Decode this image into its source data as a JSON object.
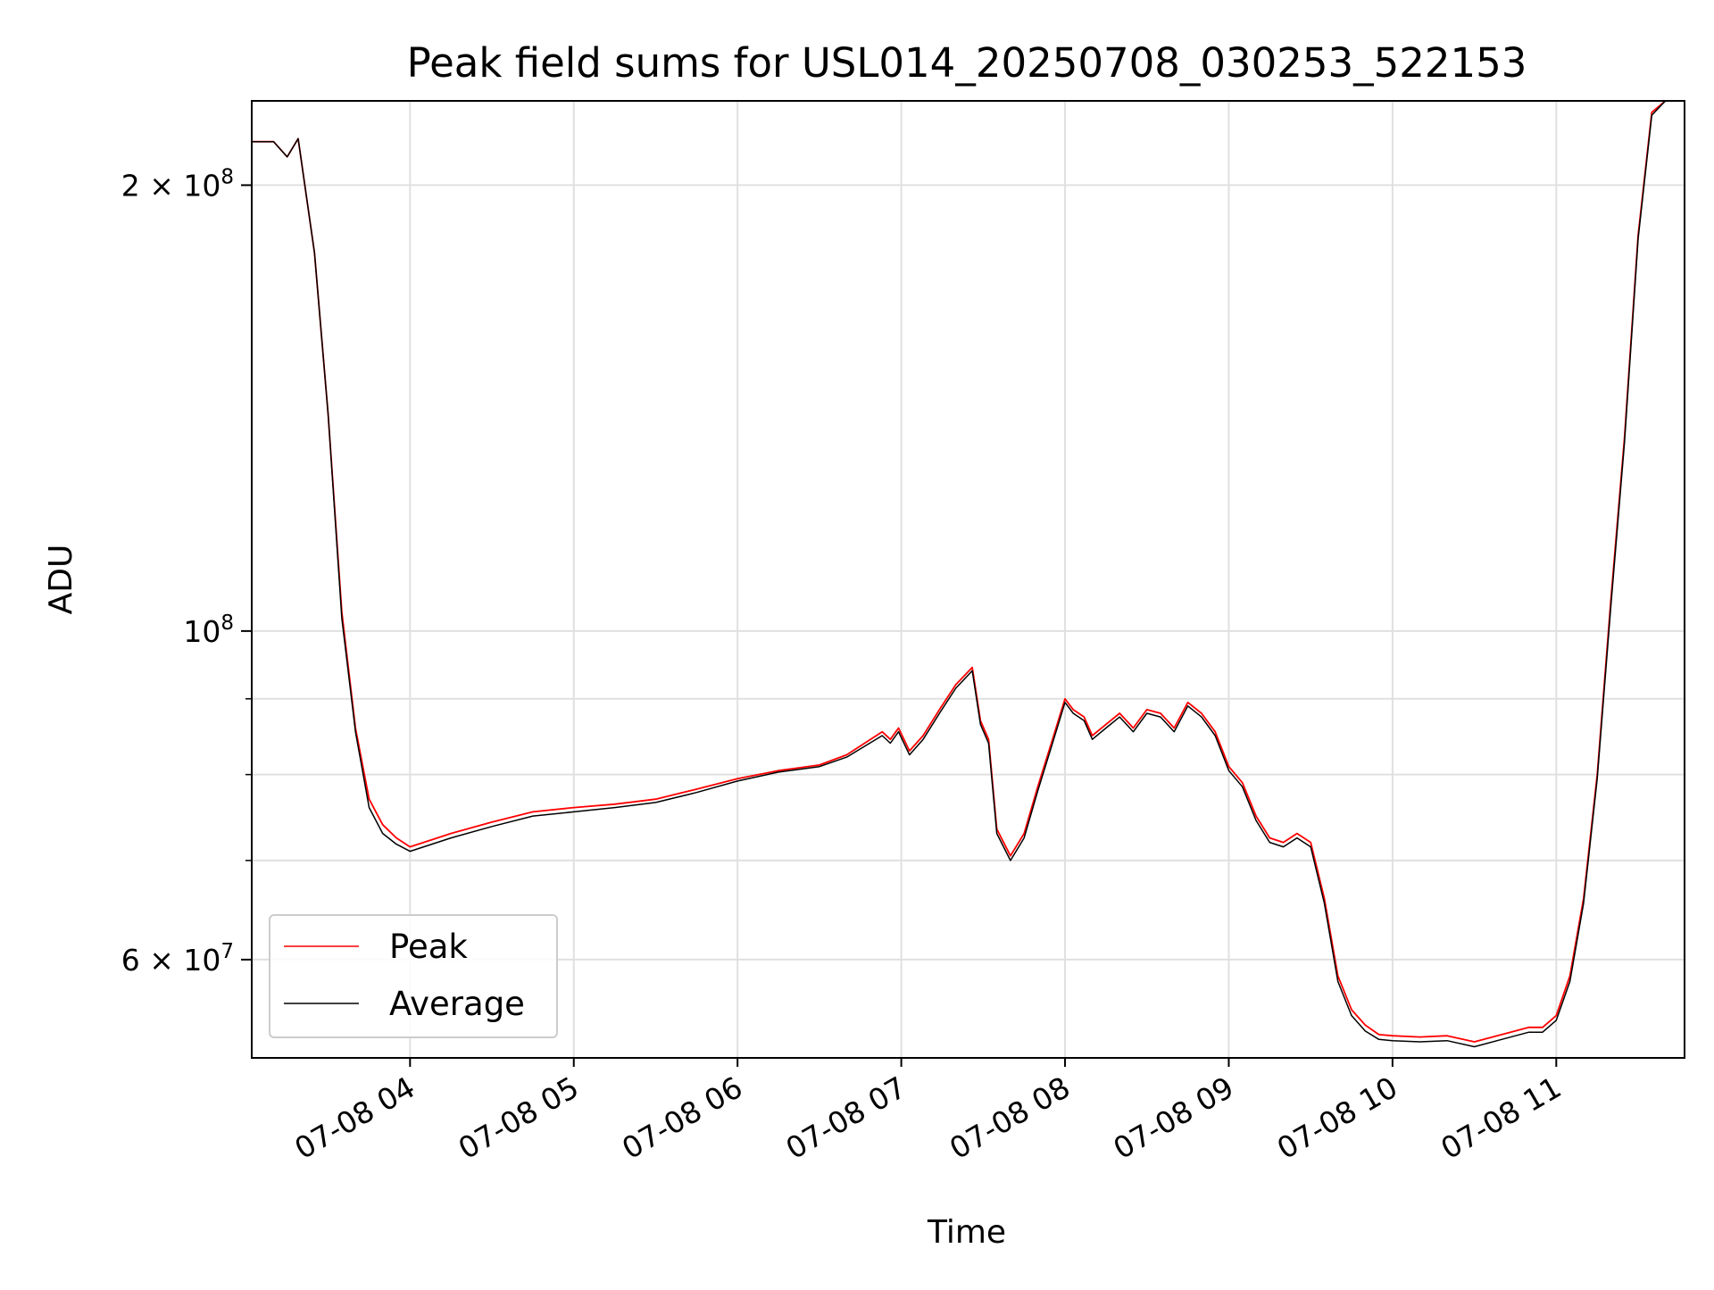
{
  "chart_data": {
    "type": "line",
    "title": "Peak field sums for USL014_20250708_030253_522153",
    "xlabel": "Time",
    "ylabel": "ADU",
    "y_scale": "log",
    "ylim": [
      51500000,
      228000000
    ],
    "xlim": [
      "07-08 03:02",
      "07-08 11:47"
    ],
    "grid": true,
    "legend_position": "lower-left",
    "x_ticks": [
      {
        "value": "07-08 04:00",
        "label": "07-08 04"
      },
      {
        "value": "07-08 05:00",
        "label": "07-08 05"
      },
      {
        "value": "07-08 06:00",
        "label": "07-08 06"
      },
      {
        "value": "07-08 07:00",
        "label": "07-08 07"
      },
      {
        "value": "07-08 08:00",
        "label": "07-08 08"
      },
      {
        "value": "07-08 09:00",
        "label": "07-08 09"
      },
      {
        "value": "07-08 10:00",
        "label": "07-08 10"
      },
      {
        "value": "07-08 11:00",
        "label": "07-08 11"
      }
    ],
    "y_ticks": [
      {
        "value": 200000000,
        "base": "2 × 10",
        "exp": "8"
      },
      {
        "value": 100000000,
        "base": "10",
        "exp": "8"
      },
      {
        "value": 60000000,
        "base": "6 × 10",
        "exp": "7"
      }
    ],
    "y_minor_ticks": [
      70000000,
      80000000,
      90000000
    ],
    "colors": {
      "peak": "#ff0000",
      "average": "#000000",
      "grid": "#e0e0e0"
    },
    "series": [
      {
        "name": "Peak",
        "color": "#ff0000",
        "x": [
          "07-08 03:02",
          "07-08 03:10",
          "07-08 03:15",
          "07-08 03:19",
          "07-08 03:25",
          "07-08 03:30",
          "07-08 03:35",
          "07-08 03:40",
          "07-08 03:45",
          "07-08 03:50",
          "07-08 03:55",
          "07-08 04:00",
          "07-08 04:05",
          "07-08 04:15",
          "07-08 04:30",
          "07-08 04:45",
          "07-08 05:00",
          "07-08 05:15",
          "07-08 05:30",
          "07-08 05:45",
          "07-08 06:00",
          "07-08 06:15",
          "07-08 06:30",
          "07-08 06:40",
          "07-08 06:53",
          "07-08 06:56",
          "07-08 06:59",
          "07-08 07:03",
          "07-08 07:08",
          "07-08 07:14",
          "07-08 07:20",
          "07-08 07:26",
          "07-08 07:29",
          "07-08 07:32",
          "07-08 07:35",
          "07-08 07:40",
          "07-08 07:45",
          "07-08 07:50",
          "07-08 07:55",
          "07-08 08:00",
          "07-08 08:03",
          "07-08 08:07",
          "07-08 08:10",
          "07-08 08:15",
          "07-08 08:20",
          "07-08 08:25",
          "07-08 08:30",
          "07-08 08:35",
          "07-08 08:40",
          "07-08 08:45",
          "07-08 08:50",
          "07-08 08:55",
          "07-08 09:00",
          "07-08 09:05",
          "07-08 09:10",
          "07-08 09:15",
          "07-08 09:20",
          "07-08 09:25",
          "07-08 09:30",
          "07-08 09:35",
          "07-08 09:40",
          "07-08 09:45",
          "07-08 09:50",
          "07-08 09:55",
          "07-08 10:00",
          "07-08 10:10",
          "07-08 10:20",
          "07-08 10:30",
          "07-08 10:40",
          "07-08 10:50",
          "07-08 10:55",
          "07-08 11:00",
          "07-08 11:05",
          "07-08 11:10",
          "07-08 11:15",
          "07-08 11:20",
          "07-08 11:25",
          "07-08 11:30",
          "07-08 11:35",
          "07-08 11:40",
          "07-08 11:47"
        ],
        "y": [
          214000000,
          214000000,
          209000000,
          215000000,
          180000000,
          140000000,
          103000000,
          86000000,
          77000000,
          74000000,
          72500000,
          71500000,
          72000000,
          73000000,
          74300000,
          75500000,
          76000000,
          76400000,
          77000000,
          78200000,
          79500000,
          80500000,
          81200000,
          82500000,
          85500000,
          84500000,
          86000000,
          83000000,
          85000000,
          88500000,
          92000000,
          94500000,
          87000000,
          84500000,
          73500000,
          70500000,
          73000000,
          78500000,
          84000000,
          90000000,
          88500000,
          87500000,
          85000000,
          86500000,
          88000000,
          86000000,
          88500000,
          88000000,
          86000000,
          89500000,
          88000000,
          85500000,
          81000000,
          79000000,
          75000000,
          72500000,
          72000000,
          73000000,
          72000000,
          66000000,
          58500000,
          55500000,
          54200000,
          53400000,
          53300000,
          53200000,
          53300000,
          52800000,
          53400000,
          54000000,
          54000000,
          55000000,
          58500000,
          66000000,
          80000000,
          105000000,
          135000000,
          185000000,
          224000000,
          228000000,
          228000000
        ]
      },
      {
        "name": "Average",
        "color": "#000000",
        "x": [
          "07-08 03:02",
          "07-08 03:10",
          "07-08 03:15",
          "07-08 03:19",
          "07-08 03:25",
          "07-08 03:30",
          "07-08 03:35",
          "07-08 03:40",
          "07-08 03:45",
          "07-08 03:50",
          "07-08 03:55",
          "07-08 04:00",
          "07-08 04:05",
          "07-08 04:15",
          "07-08 04:30",
          "07-08 04:45",
          "07-08 05:00",
          "07-08 05:15",
          "07-08 05:30",
          "07-08 05:45",
          "07-08 06:00",
          "07-08 06:15",
          "07-08 06:30",
          "07-08 06:40",
          "07-08 06:53",
          "07-08 06:56",
          "07-08 06:59",
          "07-08 07:03",
          "07-08 07:08",
          "07-08 07:14",
          "07-08 07:20",
          "07-08 07:26",
          "07-08 07:29",
          "07-08 07:32",
          "07-08 07:35",
          "07-08 07:40",
          "07-08 07:45",
          "07-08 07:50",
          "07-08 07:55",
          "07-08 08:00",
          "07-08 08:03",
          "07-08 08:07",
          "07-08 08:10",
          "07-08 08:15",
          "07-08 08:20",
          "07-08 08:25",
          "07-08 08:30",
          "07-08 08:35",
          "07-08 08:40",
          "07-08 08:45",
          "07-08 08:50",
          "07-08 08:55",
          "07-08 09:00",
          "07-08 09:05",
          "07-08 09:10",
          "07-08 09:15",
          "07-08 09:20",
          "07-08 09:25",
          "07-08 09:30",
          "07-08 09:35",
          "07-08 09:40",
          "07-08 09:45",
          "07-08 09:50",
          "07-08 09:55",
          "07-08 10:00",
          "07-08 10:10",
          "07-08 10:20",
          "07-08 10:30",
          "07-08 10:40",
          "07-08 10:50",
          "07-08 10:55",
          "07-08 11:00",
          "07-08 11:05",
          "07-08 11:10",
          "07-08 11:15",
          "07-08 11:20",
          "07-08 11:25",
          "07-08 11:30",
          "07-08 11:35",
          "07-08 11:40",
          "07-08 11:47"
        ],
        "y": [
          214000000,
          214000000,
          209000000,
          215000000,
          180000000,
          140000000,
          102000000,
          85500000,
          76000000,
          73000000,
          71800000,
          71000000,
          71500000,
          72500000,
          73800000,
          75000000,
          75500000,
          76000000,
          76600000,
          77800000,
          79200000,
          80300000,
          81000000,
          82200000,
          85000000,
          84000000,
          85500000,
          82500000,
          84500000,
          88000000,
          91500000,
          94000000,
          86500000,
          84000000,
          73000000,
          70000000,
          72500000,
          78000000,
          83500000,
          89500000,
          88000000,
          87000000,
          84500000,
          86000000,
          87500000,
          85500000,
          88000000,
          87500000,
          85500000,
          89000000,
          87500000,
          85000000,
          80500000,
          78500000,
          74500000,
          72000000,
          71500000,
          72500000,
          71500000,
          65500000,
          58000000,
          55000000,
          53700000,
          53000000,
          52900000,
          52800000,
          52900000,
          52400000,
          53000000,
          53600000,
          53600000,
          54600000,
          58000000,
          65500000,
          79500000,
          104000000,
          134000000,
          184000000,
          223000000,
          228000000,
          228000000
        ]
      }
    ]
  }
}
